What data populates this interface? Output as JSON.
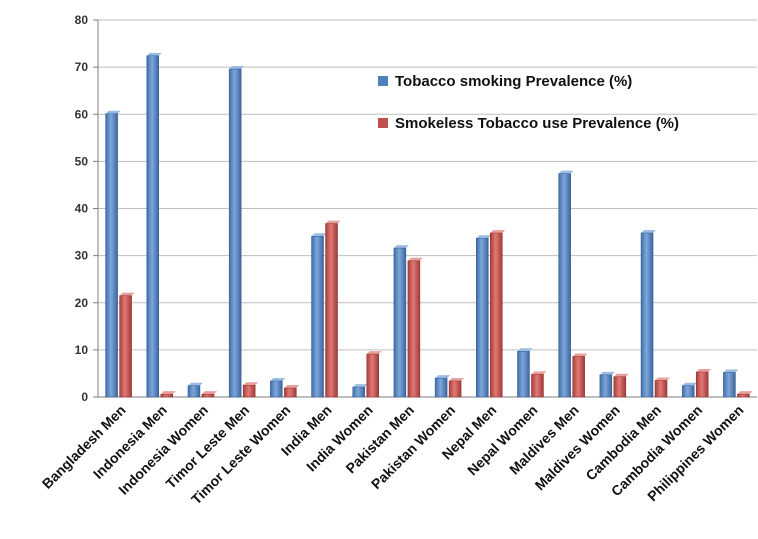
{
  "chart_data": {
    "type": "bar",
    "categories": [
      "Bangladesh Men",
      "Indonesia Men",
      "Indonesia Women",
      "Timor Leste Men",
      "Timor Leste Women",
      "India Men",
      "India Women",
      "Pakistan Men",
      "Pakistan Women",
      "Nepal Men",
      "Nepal Women",
      "Maldives Men",
      "Maldives Women",
      "Cambodia Men",
      "Cambodia Women",
      "Philippines Women"
    ],
    "series": [
      {
        "name": "Tobacco smoking Prevalence (%)",
        "color": "#4F81BD",
        "values": [
          60.1,
          72.4,
          2.4,
          69.6,
          3.4,
          34.1,
          2.1,
          31.6,
          4.0,
          33.7,
          9.7,
          47.4,
          4.7,
          34.8,
          2.4,
          5.2
        ]
      },
      {
        "name": "Smokeless Tobacco use Prevalence (%)",
        "color": "#C0504D",
        "values": [
          21.5,
          0.6,
          0.6,
          2.5,
          1.9,
          36.8,
          9.1,
          28.9,
          3.4,
          34.8,
          4.8,
          8.6,
          4.3,
          3.5,
          5.3,
          0.6
        ]
      }
    ],
    "title": "",
    "xlabel": "",
    "ylabel": "",
    "ylim": [
      0,
      80
    ],
    "yticks": [
      "0",
      "10",
      "20",
      "30",
      "40",
      "50",
      "60",
      "70",
      "80"
    ],
    "grid": true,
    "legend_position": "top-right"
  }
}
